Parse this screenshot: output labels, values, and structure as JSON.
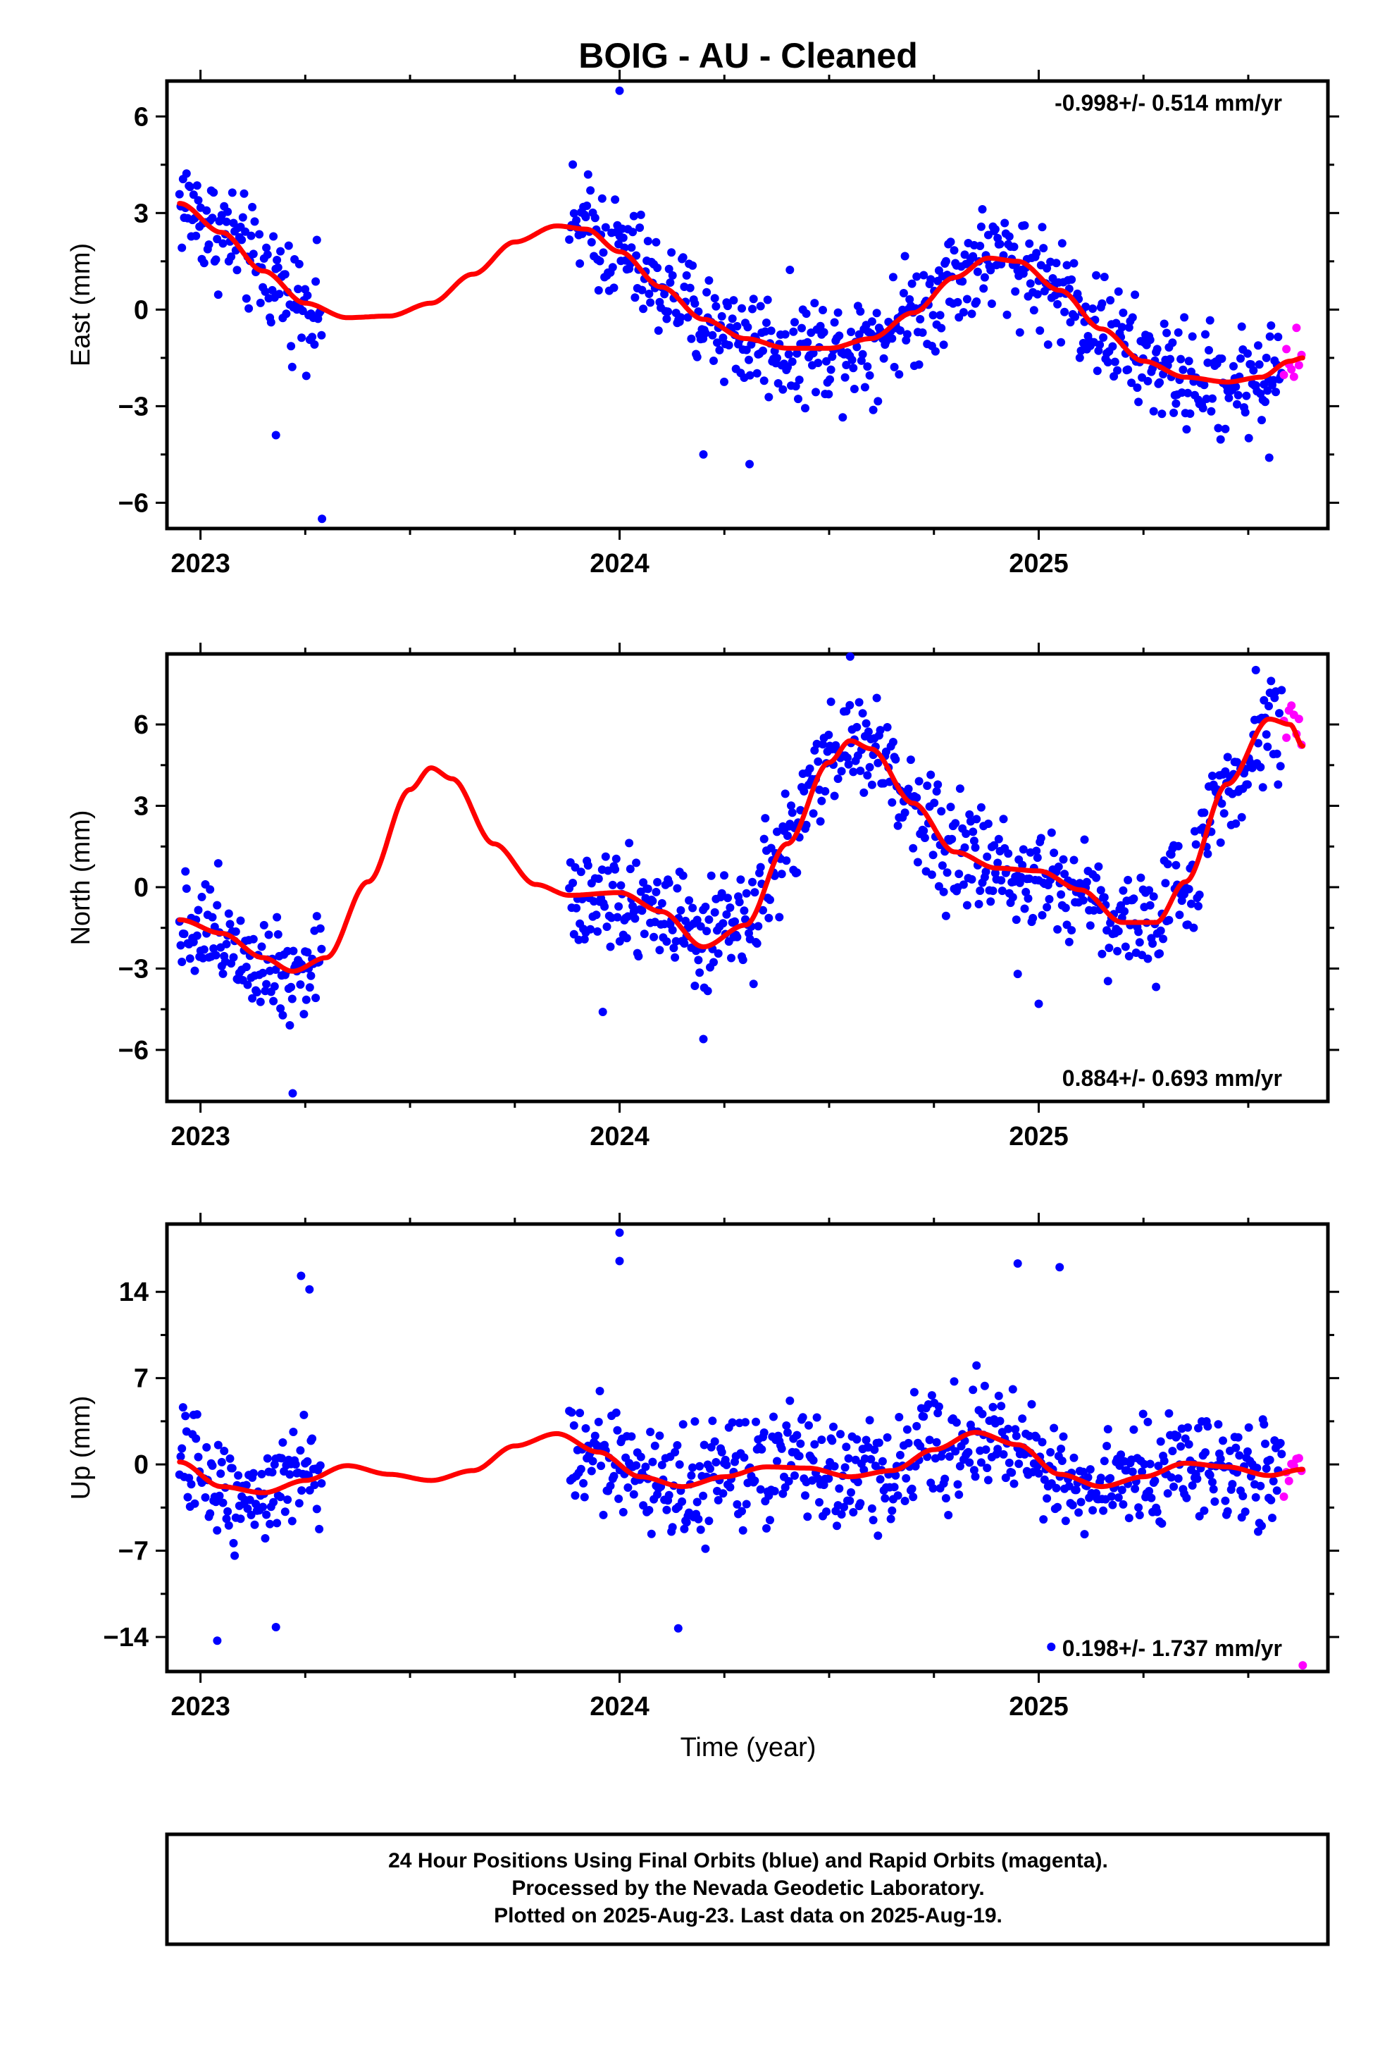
{
  "title": "BOIG  - AU - Cleaned",
  "x_axis_label": "Time (year)",
  "footer": [
    "24 Hour Positions Using Final Orbits (blue) and Rapid Orbits (magenta).",
    "Processed by the Nevada Geodetic Laboratory.",
    "Plotted on 2025-Aug-23. Last data on 2025-Aug-19."
  ],
  "colors": {
    "final": "#0000ff",
    "rapid": "#ff00ff",
    "model": "#ff0000"
  },
  "chart_data": [
    {
      "type": "scatter",
      "name": "east",
      "ylabel": "East (mm)",
      "rate_text": "-0.998+/- 0.514 mm/yr",
      "rate_position": "top-right",
      "xlim": [
        2022.92,
        2025.69
      ],
      "ylim": [
        -6.8,
        7.1
      ],
      "xticks": [
        2023,
        2024,
        2025
      ],
      "yticks": [
        6,
        3,
        0,
        -3,
        -6
      ],
      "ytick_labels": [
        "6",
        "3",
        "0",
        "−3",
        "−6"
      ],
      "final_segments": [
        [
          2022.95,
          2023.29
        ],
        [
          2023.88,
          2025.58
        ]
      ],
      "rapid_range": [
        2025.585,
        2025.632
      ],
      "model": [
        [
          2022.95,
          3.3
        ],
        [
          2023.05,
          2.4
        ],
        [
          2023.15,
          1.2
        ],
        [
          2023.25,
          0.2
        ],
        [
          2023.35,
          -0.25
        ],
        [
          2023.45,
          -0.2
        ],
        [
          2023.55,
          0.2
        ],
        [
          2023.65,
          1.1
        ],
        [
          2023.75,
          2.1
        ],
        [
          2023.85,
          2.6
        ],
        [
          2023.92,
          2.5
        ],
        [
          2024.0,
          1.8
        ],
        [
          2024.1,
          0.7
        ],
        [
          2024.2,
          -0.3
        ],
        [
          2024.3,
          -0.9
        ],
        [
          2024.4,
          -1.2
        ],
        [
          2024.5,
          -1.2
        ],
        [
          2024.6,
          -0.9
        ],
        [
          2024.7,
          -0.1
        ],
        [
          2024.8,
          1.0
        ],
        [
          2024.88,
          1.6
        ],
        [
          2024.95,
          1.5
        ],
        [
          2025.05,
          0.6
        ],
        [
          2025.15,
          -0.6
        ],
        [
          2025.25,
          -1.6
        ],
        [
          2025.35,
          -2.1
        ],
        [
          2025.45,
          -2.25
        ],
        [
          2025.53,
          -2.1
        ],
        [
          2025.6,
          -1.6
        ],
        [
          2025.63,
          -1.5
        ]
      ],
      "outliers": [
        [
          2023.29,
          -6.5
        ],
        [
          2024.0,
          6.8
        ],
        [
          2024.31,
          -4.8
        ],
        [
          2023.18,
          -3.9
        ],
        [
          2024.2,
          -4.5
        ],
        [
          2025.55,
          -4.6
        ]
      ]
    },
    {
      "type": "scatter",
      "name": "north",
      "ylabel": "North (mm)",
      "rate_text": "0.884+/- 0.693 mm/yr",
      "rate_position": "bottom-right",
      "xlim": [
        2022.92,
        2025.69
      ],
      "ylim": [
        -7.9,
        8.6
      ],
      "xticks": [
        2023,
        2024,
        2025
      ],
      "yticks": [
        6,
        3,
        0,
        -3,
        -6
      ],
      "ytick_labels": [
        "6",
        "3",
        "0",
        "−3",
        "−6"
      ],
      "final_segments": [
        [
          2022.95,
          2023.29
        ],
        [
          2023.88,
          2025.58
        ]
      ],
      "rapid_range": [
        2025.585,
        2025.632
      ],
      "model": [
        [
          2022.95,
          -1.2
        ],
        [
          2023.05,
          -1.7
        ],
        [
          2023.15,
          -2.6
        ],
        [
          2023.22,
          -3.1
        ],
        [
          2023.3,
          -2.6
        ],
        [
          2023.4,
          0.2
        ],
        [
          2023.5,
          3.6
        ],
        [
          2023.55,
          4.4
        ],
        [
          2023.6,
          4.0
        ],
        [
          2023.7,
          1.6
        ],
        [
          2023.8,
          0.1
        ],
        [
          2023.88,
          -0.3
        ],
        [
          2024.0,
          -0.2
        ],
        [
          2024.1,
          -0.9
        ],
        [
          2024.2,
          -2.2
        ],
        [
          2024.3,
          -1.4
        ],
        [
          2024.4,
          1.6
        ],
        [
          2024.5,
          4.6
        ],
        [
          2024.55,
          5.4
        ],
        [
          2024.6,
          5.1
        ],
        [
          2024.7,
          3.1
        ],
        [
          2024.8,
          1.3
        ],
        [
          2024.9,
          0.7
        ],
        [
          2025.0,
          0.6
        ],
        [
          2025.1,
          -0.1
        ],
        [
          2025.2,
          -1.3
        ],
        [
          2025.28,
          -1.3
        ],
        [
          2025.35,
          0.2
        ],
        [
          2025.45,
          3.8
        ],
        [
          2025.55,
          6.2
        ],
        [
          2025.6,
          6.0
        ],
        [
          2025.63,
          5.2
        ]
      ],
      "outliers": [
        [
          2023.22,
          -7.6
        ],
        [
          2024.55,
          8.5
        ],
        [
          2024.2,
          -5.6
        ],
        [
          2023.96,
          -4.6
        ],
        [
          2025.0,
          -4.3
        ],
        [
          2024.95,
          -3.2
        ]
      ]
    },
    {
      "type": "scatter",
      "name": "up",
      "ylabel": "Up (mm)",
      "rate_text": "0.198+/- 1.737 mm/yr",
      "rate_position": "bottom-right",
      "xlim": [
        2022.92,
        2025.69
      ],
      "ylim": [
        -16.8,
        19.5
      ],
      "xticks": [
        2023,
        2024,
        2025
      ],
      "yticks": [
        14,
        7,
        0,
        -7,
        -14
      ],
      "ytick_labels": [
        "14",
        "7",
        "0",
        "−7",
        "−14"
      ],
      "final_segments": [
        [
          2022.95,
          2023.29
        ],
        [
          2023.88,
          2025.58
        ]
      ],
      "rapid_range": [
        2025.585,
        2025.632
      ],
      "model": [
        [
          2022.95,
          0.2
        ],
        [
          2023.05,
          -1.8
        ],
        [
          2023.15,
          -2.3
        ],
        [
          2023.25,
          -1.3
        ],
        [
          2023.35,
          -0.1
        ],
        [
          2023.45,
          -0.8
        ],
        [
          2023.55,
          -1.3
        ],
        [
          2023.65,
          -0.5
        ],
        [
          2023.75,
          1.5
        ],
        [
          2023.85,
          2.5
        ],
        [
          2023.95,
          1.0
        ],
        [
          2024.05,
          -1.0
        ],
        [
          2024.15,
          -1.8
        ],
        [
          2024.25,
          -1.0
        ],
        [
          2024.35,
          -0.2
        ],
        [
          2024.45,
          -0.3
        ],
        [
          2024.55,
          -1.0
        ],
        [
          2024.65,
          -0.5
        ],
        [
          2024.75,
          1.2
        ],
        [
          2024.85,
          2.6
        ],
        [
          2024.95,
          1.6
        ],
        [
          2025.05,
          -0.8
        ],
        [
          2025.15,
          -1.8
        ],
        [
          2025.25,
          -1.0
        ],
        [
          2025.35,
          0.1
        ],
        [
          2025.45,
          -0.2
        ],
        [
          2025.55,
          -0.9
        ],
        [
          2025.63,
          -0.4
        ]
      ],
      "outliers": [
        [
          2024.0,
          18.8
        ],
        [
          2024.0,
          16.5
        ],
        [
          2023.24,
          15.3
        ],
        [
          2023.26,
          14.2
        ],
        [
          2024.95,
          16.3
        ],
        [
          2025.05,
          16.0
        ],
        [
          2025.03,
          -14.8
        ],
        [
          2025.63,
          -16.3
        ],
        [
          2024.14,
          -13.3
        ],
        [
          2023.04,
          -14.3
        ],
        [
          2023.18,
          -13.2
        ]
      ]
    }
  ]
}
